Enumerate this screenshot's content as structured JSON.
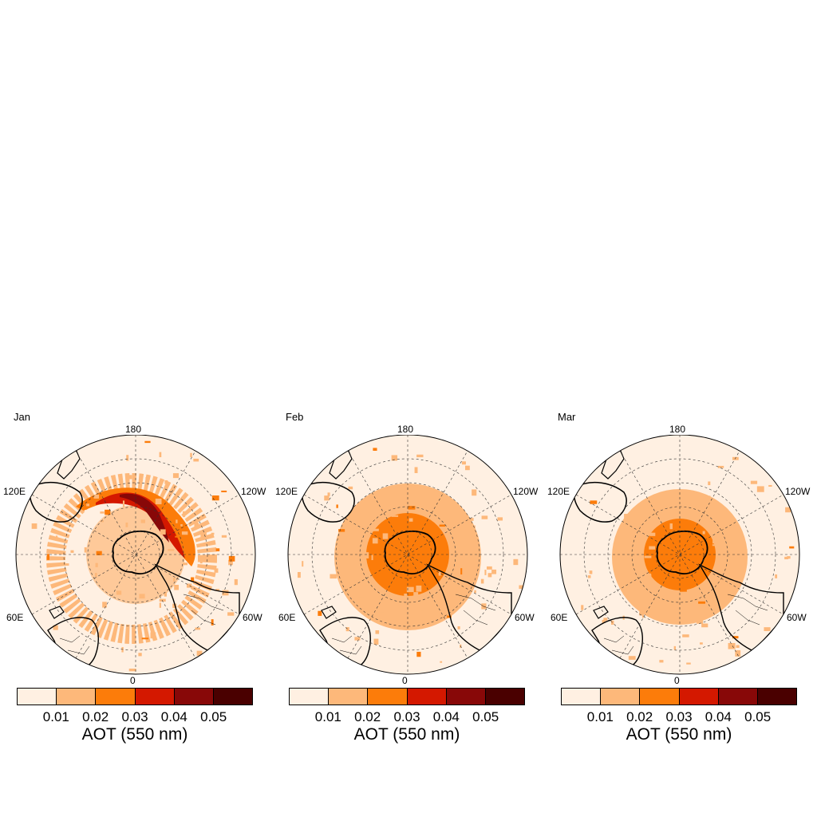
{
  "panels": [
    {
      "title": "Jan",
      "variant": "jan"
    },
    {
      "title": "Feb",
      "variant": "feb"
    },
    {
      "title": "Mar",
      "variant": "mar"
    }
  ],
  "lon_labels": {
    "top": "180",
    "bottom": "0",
    "upper_left": "120E",
    "upper_right": "120W",
    "lower_left": "60E",
    "lower_right": "60W"
  },
  "colorbar": {
    "ticks": [
      "0.01",
      "0.02",
      "0.03",
      "0.04",
      "0.05"
    ],
    "colors": [
      "#fff0e2",
      "#fdb87a",
      "#fc7c0a",
      "#d41800",
      "#880808",
      "#4a0000"
    ],
    "title": "AOT (550 nm)"
  }
}
